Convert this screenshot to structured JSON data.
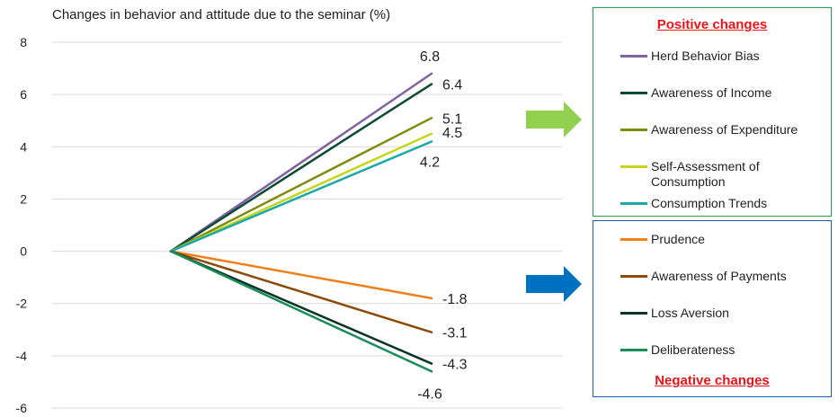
{
  "chart_data": {
    "type": "line",
    "title": "Changes in behavior and attitude due to the seminar (%)",
    "x": [
      0,
      1
    ],
    "ylim": [
      -6,
      8
    ],
    "yticks": [
      -6,
      -4,
      -2,
      0,
      2,
      4,
      6,
      8
    ],
    "grid": true,
    "series": [
      {
        "name": "Herd Behavior Bias",
        "group": "positive",
        "values": [
          0,
          6.8
        ],
        "label": "6.8",
        "color": "#8064a2"
      },
      {
        "name": "Awareness of Income",
        "group": "positive",
        "values": [
          0,
          6.4
        ],
        "label": "6.4",
        "color": "#0d4a36"
      },
      {
        "name": "Awareness of Expenditure",
        "group": "positive",
        "values": [
          0,
          5.1
        ],
        "label": "5.1",
        "color": "#7f8c0f"
      },
      {
        "name": "Self-Assessment of Consumption",
        "group": "positive",
        "values": [
          0,
          4.5
        ],
        "label": "4.5",
        "color": "#c5d61a"
      },
      {
        "name": "Consumption Trends",
        "group": "positive",
        "values": [
          0,
          4.2
        ],
        "label": "4.2",
        "color": "#1aa8a8"
      },
      {
        "name": "Prudence",
        "group": "negative",
        "values": [
          0,
          -1.8
        ],
        "label": "-1.8",
        "color": "#ee7f1a"
      },
      {
        "name": "Awareness of Payments",
        "group": "negative",
        "values": [
          0,
          -3.1
        ],
        "label": "-3.1",
        "color": "#8c4a08"
      },
      {
        "name": "Loss Aversion",
        "group": "negative",
        "values": [
          0,
          -4.3
        ],
        "label": "-4.3",
        "color": "#0b3326"
      },
      {
        "name": "Deliberateness",
        "group": "negative",
        "values": [
          0,
          -4.6
        ],
        "label": "-4.6",
        "color": "#1a8c5a"
      }
    ]
  },
  "legend": {
    "positive_heading": "Positive changes",
    "negative_heading": "Negative changes"
  },
  "colors": {
    "positive_arrow": "#92d050",
    "negative_arrow": "#0070c0",
    "positive_border": "#23a047",
    "negative_border": "#1f5fa8"
  }
}
